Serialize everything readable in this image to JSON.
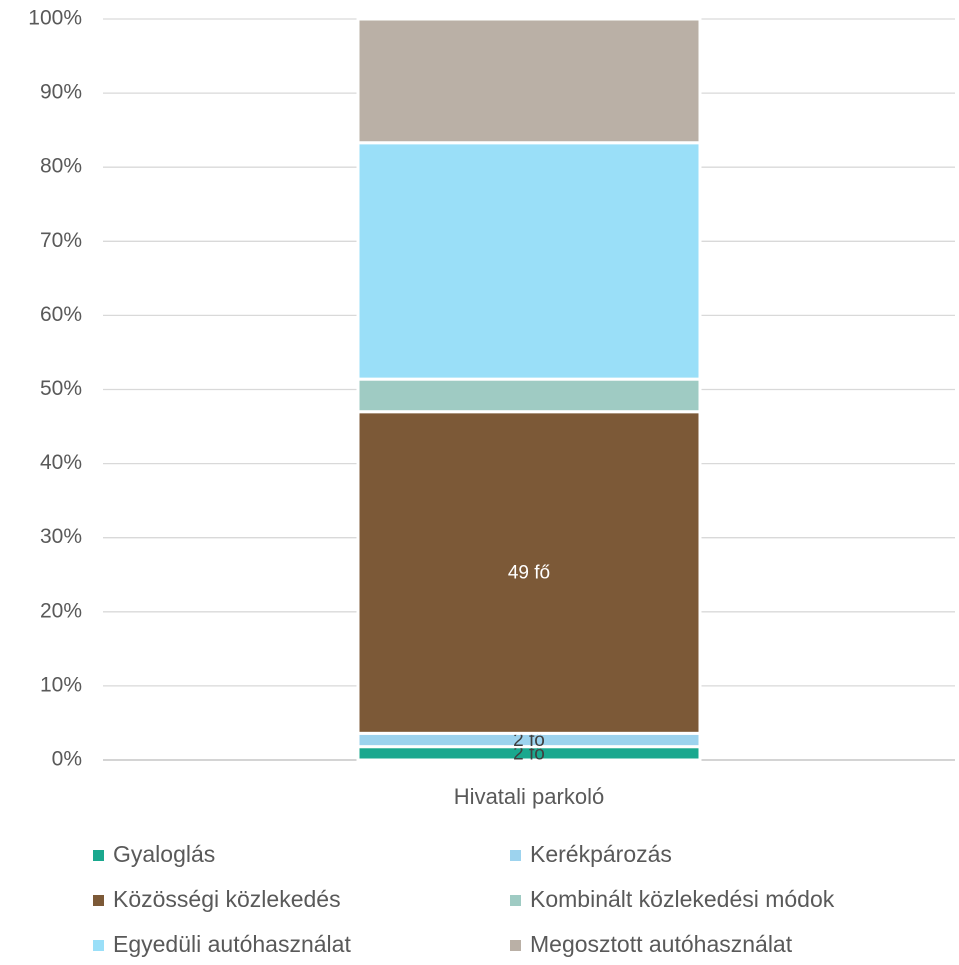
{
  "chart_data": {
    "type": "stacked_bar",
    "categories": [
      "Hivatali parkoló"
    ],
    "series": [
      {
        "name": "Gyaloglás",
        "color": "#1aa88e",
        "values": [
          1.8
        ],
        "value_labels": [
          "2 fő"
        ]
      },
      {
        "name": "Kerékpározás",
        "color": "#9dd3ee",
        "values": [
          1.8
        ],
        "value_labels": [
          "2 fő"
        ]
      },
      {
        "name": "Közösségi közlekedés",
        "color": "#7c5937",
        "values": [
          43.4
        ],
        "value_labels": [
          "49 fő"
        ]
      },
      {
        "name": "Kombinált közlekedési módok",
        "color": "#9fcbc3",
        "values": [
          4.4
        ]
      },
      {
        "name": "Egyedüli autóhasználat",
        "color": "#9adff8",
        "values": [
          31.9
        ]
      },
      {
        "name": "Megosztott autóhasználat",
        "color": "#bab0a6",
        "values": [
          16.7
        ]
      }
    ],
    "ylim": [
      0,
      100
    ],
    "yticks": [
      {
        "value": 0,
        "label": "0%"
      },
      {
        "value": 10,
        "label": "10%"
      },
      {
        "value": 20,
        "label": "20%"
      },
      {
        "value": 30,
        "label": "30%"
      },
      {
        "value": 40,
        "label": "40%"
      },
      {
        "value": 50,
        "label": "50%"
      },
      {
        "value": 60,
        "label": "60%"
      },
      {
        "value": 70,
        "label": "70%"
      },
      {
        "value": 80,
        "label": "80%"
      },
      {
        "value": 90,
        "label": "90%"
      },
      {
        "value": 100,
        "label": "100%"
      }
    ],
    "grid": true,
    "legend": "bottom"
  }
}
